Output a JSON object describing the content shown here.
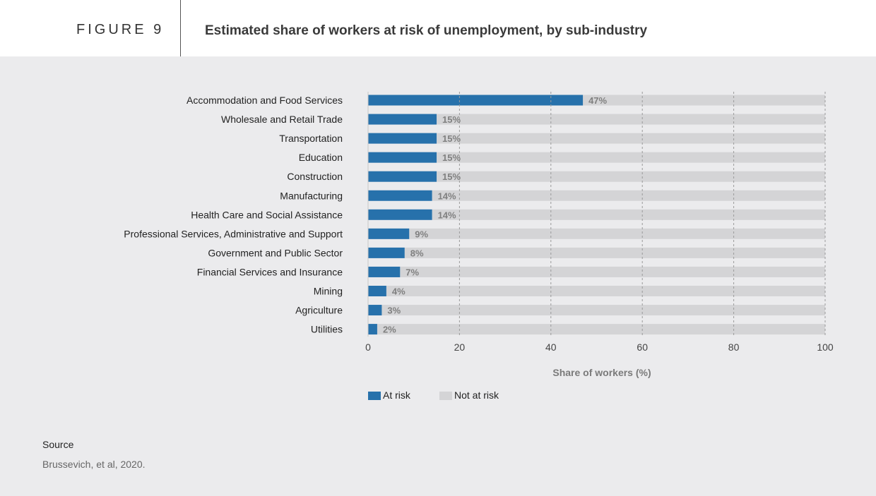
{
  "header": {
    "figure_label": "FIGURE 9",
    "title": "Estimated share of workers at risk of unemployment, by sub-industry"
  },
  "colors": {
    "at_risk": "#2771ab",
    "not_at_risk": "#d4d4d6",
    "grid": "#9a9a9a"
  },
  "chart_data": {
    "type": "bar",
    "orientation": "horizontal",
    "stacked": true,
    "title": "Estimated share of workers at risk of unemployment, by sub-industry",
    "xlabel": "Share of workers (%)",
    "ylabel": "",
    "xlim": [
      0,
      100
    ],
    "xticks": [
      0,
      20,
      40,
      60,
      80,
      100
    ],
    "grid": "vertical-dashed",
    "legend": "bottom",
    "categories": [
      "Accommodation and Food Services",
      "Wholesale and Retail Trade",
      "Transportation",
      "Education",
      "Construction",
      "Manufacturing",
      "Health Care and Social Assistance",
      "Professional Services, Administrative and Support",
      "Government and Public Sector",
      "Financial Services and Insurance",
      "Mining",
      "Agriculture",
      "Utilities"
    ],
    "series": [
      {
        "name": "At risk",
        "values": [
          47,
          15,
          15,
          15,
          15,
          14,
          14,
          9,
          8,
          7,
          4,
          3,
          2
        ]
      },
      {
        "name": "Not at risk",
        "values": [
          53,
          85,
          85,
          85,
          85,
          86,
          86,
          91,
          92,
          93,
          96,
          97,
          98
        ]
      }
    ],
    "data_labels": [
      "47%",
      "15%",
      "15%",
      "15%",
      "15%",
      "14%",
      "14%",
      "9%",
      "8%",
      "7%",
      "4%",
      "3%",
      "2%"
    ]
  },
  "source": {
    "title": "Source",
    "text": "Brussevich, et al, 2020."
  }
}
